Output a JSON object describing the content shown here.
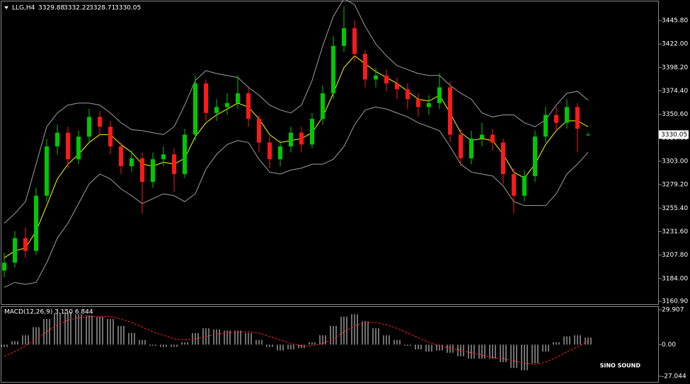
{
  "quote": {
    "symbol": "LLG,H4",
    "open": 3329.88,
    "high": 3332.22,
    "low": 3328.71,
    "close": 3330.05
  },
  "watermark": "SINO SOUND",
  "chart_data": [
    {
      "type": "candlestick",
      "ylim": [
        3158,
        3464.5
      ],
      "yticks": [
        {
          "value": 3160.9,
          "label": "3160.90"
        },
        {
          "value": 3184,
          "label": "3184.00"
        },
        {
          "value": 3207.8,
          "label": "3207.80"
        },
        {
          "value": 3231.6,
          "label": "3231.60"
        },
        {
          "value": 3255.4,
          "label": "3255.40"
        },
        {
          "value": 3279.2,
          "label": "3279.20"
        },
        {
          "value": 3303,
          "label": "3303.00"
        },
        {
          "value": 3326.8,
          "label": "3326.80"
        },
        {
          "value": 3350.6,
          "label": "3350.60"
        },
        {
          "value": 3374.4,
          "label": "3374.40"
        },
        {
          "value": 3398.2,
          "label": "3398.20"
        },
        {
          "value": 3422,
          "label": "3422.00"
        },
        {
          "value": 3445.8,
          "label": "3445.80"
        }
      ],
      "up_color": "#00c800",
      "down_color": "#ff1a1a",
      "open": [
        3192,
        3200,
        3225,
        3212,
        3268,
        3318,
        3332,
        3305,
        3328,
        3348,
        3338,
        3318,
        3298,
        3306,
        3282,
        3305,
        3310,
        3290,
        3330,
        3382,
        3352,
        3358,
        3362,
        3372,
        3346,
        3322,
        3305,
        3318,
        3332,
        3320,
        3346,
        3372,
        3420,
        3438,
        3412,
        3386,
        3390,
        3382,
        3376,
        3366,
        3358,
        3362,
        3378,
        3330,
        3306,
        3326,
        3330,
        3322,
        3290,
        3268,
        3288,
        3328,
        3350,
        3342,
        3358,
        3329.88
      ],
      "high": [
        3210,
        3232,
        3236,
        3276,
        3326,
        3340,
        3338,
        3334,
        3356,
        3354,
        3344,
        3322,
        3314,
        3312,
        3312,
        3318,
        3316,
        3336,
        3390,
        3386,
        3366,
        3372,
        3390,
        3378,
        3350,
        3328,
        3324,
        3338,
        3338,
        3352,
        3380,
        3430,
        3460,
        3446,
        3416,
        3398,
        3396,
        3388,
        3382,
        3372,
        3370,
        3392,
        3384,
        3336,
        3334,
        3342,
        3336,
        3326,
        3296,
        3294,
        3334,
        3358,
        3358,
        3366,
        3362,
        3332.22
      ],
      "low": [
        3185,
        3195,
        3205,
        3208,
        3262,
        3310,
        3296,
        3300,
        3322,
        3330,
        3310,
        3290,
        3292,
        3250,
        3276,
        3298,
        3272,
        3286,
        3324,
        3344,
        3344,
        3350,
        3356,
        3338,
        3312,
        3296,
        3298,
        3312,
        3312,
        3316,
        3340,
        3366,
        3414,
        3404,
        3378,
        3378,
        3374,
        3366,
        3356,
        3348,
        3350,
        3356,
        3322,
        3298,
        3300,
        3318,
        3314,
        3280,
        3250,
        3262,
        3282,
        3322,
        3334,
        3336,
        3312,
        3328.71
      ],
      "close": [
        3200,
        3225,
        3212,
        3268,
        3318,
        3332,
        3305,
        3328,
        3348,
        3338,
        3318,
        3298,
        3306,
        3282,
        3305,
        3310,
        3290,
        3330,
        3382,
        3352,
        3358,
        3362,
        3372,
        3346,
        3322,
        3305,
        3318,
        3332,
        3320,
        3346,
        3372,
        3420,
        3438,
        3412,
        3386,
        3390,
        3382,
        3376,
        3366,
        3358,
        3362,
        3378,
        3330,
        3306,
        3326,
        3330,
        3322,
        3290,
        3268,
        3288,
        3328,
        3350,
        3342,
        3358,
        3336,
        3330.05
      ],
      "series": [
        {
          "color": "#ffff00",
          "values": [
            3205,
            3212,
            3215,
            3232,
            3258,
            3285,
            3300,
            3310,
            3322,
            3330,
            3330,
            3320,
            3312,
            3300,
            3298,
            3302,
            3300,
            3306,
            3328,
            3342,
            3350,
            3356,
            3362,
            3358,
            3346,
            3330,
            3322,
            3324,
            3326,
            3332,
            3348,
            3372,
            3398,
            3410,
            3402,
            3394,
            3388,
            3382,
            3374,
            3366,
            3364,
            3370,
            3352,
            3332,
            3324,
            3326,
            3324,
            3310,
            3292,
            3286,
            3300,
            3320,
            3334,
            3344,
            3344,
            3338
          ]
        },
        {
          "color": "#a0a0a0",
          "values": [
            3240,
            3250,
            3262,
            3300,
            3338,
            3352,
            3360,
            3362,
            3362,
            3360,
            3352,
            3342,
            3335,
            3334,
            3332,
            3330,
            3338,
            3360,
            3385,
            3395,
            3392,
            3390,
            3388,
            3378,
            3370,
            3360,
            3355,
            3352,
            3360,
            3385,
            3420,
            3450,
            3468,
            3462,
            3440,
            3422,
            3410,
            3400,
            3396,
            3392,
            3390,
            3390,
            3380,
            3372,
            3366,
            3352,
            3348,
            3350,
            3350,
            3342,
            3338,
            3345,
            3360,
            3372,
            3374,
            3365
          ]
        },
        {
          "color": "#a0a0a0",
          "values": [
            3175,
            3180,
            3178,
            3180,
            3200,
            3225,
            3240,
            3260,
            3280,
            3290,
            3285,
            3275,
            3268,
            3260,
            3265,
            3270,
            3268,
            3262,
            3270,
            3295,
            3310,
            3320,
            3324,
            3322,
            3305,
            3292,
            3290,
            3294,
            3296,
            3300,
            3300,
            3305,
            3318,
            3340,
            3355,
            3358,
            3356,
            3352,
            3348,
            3342,
            3338,
            3334,
            3318,
            3300,
            3292,
            3290,
            3288,
            3278,
            3262,
            3258,
            3258,
            3258,
            3270,
            3290,
            3300,
            3312
          ]
        }
      ]
    },
    {
      "type": "macd",
      "label": "MACD(12,26,9) 3.150 6.844",
      "ylim": [
        -32.5,
        32.3
      ],
      "yticks": [
        29.907,
        {
          "value": 0,
          "label": "0.00"
        },
        -27.044
      ],
      "histogram_color": "#e0e0e0",
      "signal_color": "#ff2020",
      "histogram": [
        -2,
        3,
        8,
        15,
        22,
        27,
        28,
        26,
        25,
        24,
        22,
        16,
        10,
        4,
        -1,
        -2,
        -2,
        2,
        10,
        14,
        13,
        12,
        12,
        10,
        4,
        -2,
        -5,
        -4,
        -3,
        2,
        8,
        16,
        24,
        26,
        20,
        14,
        8,
        4,
        -1,
        -4,
        -6,
        -5,
        -7,
        -10,
        -12,
        -12,
        -12,
        -15,
        -20,
        -22,
        -16,
        -6,
        2,
        7,
        8,
        6
      ],
      "signal": [
        -10,
        -6,
        -1,
        5,
        11,
        17,
        21,
        23,
        24,
        24,
        24,
        22,
        19,
        15,
        11,
        8,
        5,
        4,
        5,
        7,
        9,
        10,
        11,
        11,
        10,
        7,
        4,
        1,
        -1,
        -1,
        1,
        5,
        11,
        16,
        19,
        19,
        17,
        14,
        10,
        6,
        2,
        -1,
        -3,
        -5,
        -7,
        -9,
        -11,
        -12,
        -14,
        -16,
        -17,
        -15,
        -11,
        -6,
        -2,
        3
      ]
    }
  ]
}
